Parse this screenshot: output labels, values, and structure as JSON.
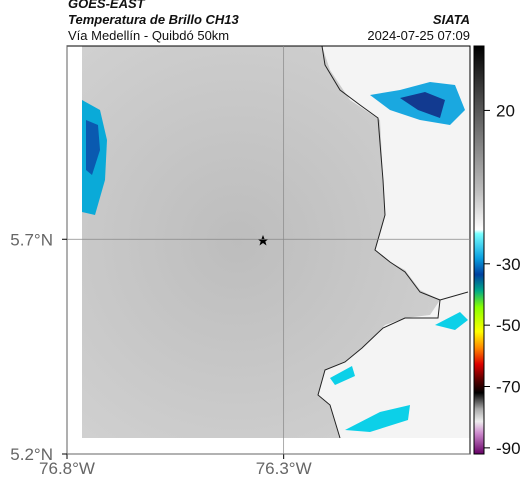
{
  "header": {
    "satellite": "GOES-EAST",
    "title": "Temperatura de Brillo CH13",
    "subtitle": "Vía Medellín - Quibdó 50km",
    "source": "SIATA",
    "datetime": "2024-07-25 07:09"
  },
  "map": {
    "xlim": [
      -76.8,
      -75.87
    ],
    "ylim": [
      5.2,
      6.15
    ],
    "xticks": [
      {
        "value": -76.8,
        "label": "76.8°W"
      },
      {
        "value": -76.3,
        "label": "76.3°W"
      }
    ],
    "yticks": [
      {
        "value": 5.7,
        "label": "5.7°N"
      },
      {
        "value": 5.2,
        "label": "5.2°N"
      }
    ],
    "grid": true
  },
  "colorbar": {
    "range": [
      -92,
      41
    ],
    "ticks": [
      20,
      -30,
      -50,
      -70,
      -90
    ]
  }
}
